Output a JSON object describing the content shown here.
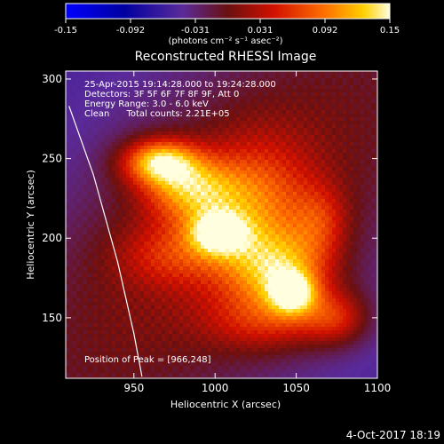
{
  "colorbar": {
    "ticks": [
      "-0.15",
      "-0.092",
      "-0.031",
      "0.031",
      "0.092",
      "0.15"
    ],
    "unit_label": "(photons cm⁻² s⁻¹ asec⁻²)"
  },
  "chart_data": {
    "type": "heatmap",
    "title": "Reconstructed RHESSI Image",
    "xlabel": "Heliocentric X (arcsec)",
    "ylabel": "Heliocentric Y (arcsec)",
    "xlim": [
      908,
      1100
    ],
    "ylim": [
      112,
      305
    ],
    "x_ticks": [
      950,
      1000,
      1050,
      1100
    ],
    "y_ticks": [
      150,
      200,
      250,
      300
    ],
    "color_range": [
      -0.15,
      0.15
    ],
    "blobs": [
      {
        "x": 966,
        "y": 248,
        "sx": 16,
        "sy": 10,
        "amp": 1.0
      },
      {
        "x": 985,
        "y": 230,
        "sx": 20,
        "sy": 14,
        "amp": 0.72
      },
      {
        "x": 1002,
        "y": 203,
        "sx": 12,
        "sy": 9,
        "amp": 0.85
      },
      {
        "x": 1025,
        "y": 218,
        "sx": 24,
        "sy": 30,
        "amp": 0.55
      },
      {
        "x": 1040,
        "y": 180,
        "sx": 22,
        "sy": 16,
        "amp": 0.7
      },
      {
        "x": 1048,
        "y": 165,
        "sx": 10,
        "sy": 9,
        "amp": 0.82
      },
      {
        "x": 1035,
        "y": 148,
        "sx": 28,
        "sy": 14,
        "amp": 0.45
      },
      {
        "x": 1075,
        "y": 150,
        "sx": 14,
        "sy": 12,
        "amp": 0.45
      },
      {
        "x": 1065,
        "y": 210,
        "sx": 12,
        "sy": 16,
        "amp": 0.35
      },
      {
        "x": 975,
        "y": 190,
        "sx": 24,
        "sy": 14,
        "amp": 0.35
      }
    ],
    "limb_line": [
      [
        910,
        283
      ],
      [
        925,
        240
      ],
      [
        940,
        185
      ],
      [
        950,
        140
      ],
      [
        955,
        113
      ]
    ],
    "annotations": [
      "25-Apr-2015 19:14:28.000 to 19:24:28.000",
      "Detectors: 3F 5F 6F 7F 8F 9F, Att 0",
      "Energy Range: 3.0 - 6.0 keV",
      "Clean      Total counts: 2.21E+05"
    ],
    "peak_label": "Position of Peak = [966,248]",
    "timestamp": "4-Oct-2017 18:19"
  }
}
